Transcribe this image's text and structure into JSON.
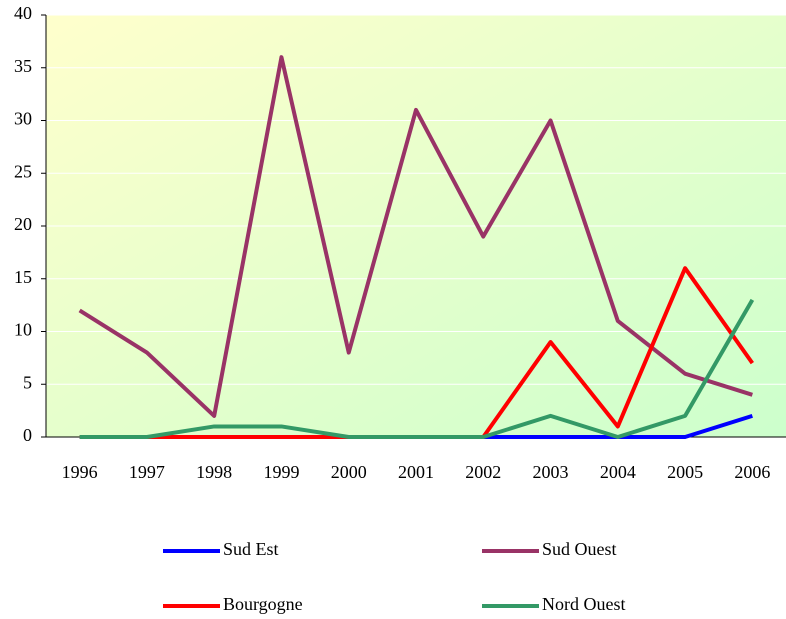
{
  "chart_data": {
    "type": "line",
    "categories": [
      "1996",
      "1997",
      "1998",
      "1999",
      "2000",
      "2001",
      "2002",
      "2003",
      "2004",
      "2005",
      "2006"
    ],
    "series": [
      {
        "name": "Sud Est",
        "color": "#0000ff",
        "values": [
          0,
          0,
          0,
          0,
          0,
          0,
          0,
          0,
          0,
          0,
          2
        ]
      },
      {
        "name": "Sud Ouest",
        "color": "#993366",
        "values": [
          12,
          8,
          2,
          36,
          8,
          31,
          19,
          30,
          11,
          6,
          4
        ]
      },
      {
        "name": "Bourgogne",
        "color": "#ff0000",
        "values": [
          0,
          0,
          0,
          0,
          0,
          0,
          0,
          9,
          1,
          16,
          7
        ]
      },
      {
        "name": "Nord Ouest",
        "color": "#339966",
        "values": [
          0,
          0,
          1,
          1,
          0,
          0,
          0,
          2,
          0,
          2,
          13
        ]
      }
    ],
    "ylim": [
      0,
      40
    ],
    "yticks": [
      0,
      5,
      10,
      15,
      20,
      25,
      30,
      35,
      40
    ],
    "grid": true
  }
}
